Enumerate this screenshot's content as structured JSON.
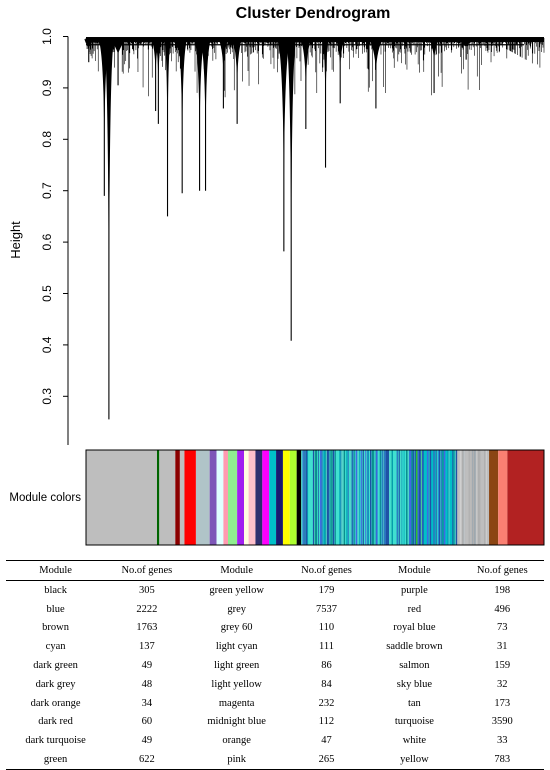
{
  "chart_data": {
    "type": "dendrogram",
    "title": "Cluster Dendrogram",
    "ylabel": "Height",
    "xlabel": "",
    "ylim": [
      0.22,
      1.0
    ],
    "yticks": [
      0.3,
      0.4,
      0.5,
      0.6,
      0.7,
      0.8,
      0.9,
      1.0
    ],
    "ytick_labels": [
      "0.3",
      "0.4",
      "0.5",
      "0.6",
      "0.7",
      "0.8",
      "0.9",
      "1.0"
    ],
    "color_bar_label": "Module colors",
    "deep_branches": [
      {
        "pos": 0.05,
        "height": 0.255
      },
      {
        "pos": 0.178,
        "height": 0.65
      },
      {
        "pos": 0.04,
        "height": 0.69
      },
      {
        "pos": 0.21,
        "height": 0.695
      },
      {
        "pos": 0.248,
        "height": 0.7
      },
      {
        "pos": 0.261,
        "height": 0.7
      },
      {
        "pos": 0.448,
        "height": 0.408
      },
      {
        "pos": 0.432,
        "height": 0.582
      },
      {
        "pos": 0.523,
        "height": 0.745
      },
      {
        "pos": 0.152,
        "height": 0.855
      },
      {
        "pos": 0.158,
        "height": 0.83
      },
      {
        "pos": 0.3,
        "height": 0.86
      },
      {
        "pos": 0.33,
        "height": 0.83
      },
      {
        "pos": 0.48,
        "height": 0.82
      },
      {
        "pos": 0.555,
        "height": 0.87
      },
      {
        "pos": 0.633,
        "height": 0.86
      },
      {
        "pos": 0.76,
        "height": 0.89
      },
      {
        "pos": 0.07,
        "height": 0.905
      },
      {
        "pos": 0.006,
        "height": 0.95
      },
      {
        "pos": 0.83,
        "height": 0.955
      }
    ],
    "module_color_bands": [
      {
        "from": 0.0,
        "to": 0.155,
        "color": "#bebebe"
      },
      {
        "from": 0.155,
        "to": 0.16,
        "color": "#006400"
      },
      {
        "from": 0.16,
        "to": 0.195,
        "color": "#bebebe"
      },
      {
        "from": 0.195,
        "to": 0.205,
        "color": "#8b0000"
      },
      {
        "from": 0.205,
        "to": 0.215,
        "color": "#bebebe"
      },
      {
        "from": 0.215,
        "to": 0.24,
        "color": "#ff0000"
      },
      {
        "from": 0.24,
        "to": 0.27,
        "color": "#b0c4c8"
      },
      {
        "from": 0.27,
        "to": 0.285,
        "color": "#7e57b8"
      },
      {
        "from": 0.285,
        "to": 0.3,
        "color": "#e0ffff"
      },
      {
        "from": 0.3,
        "to": 0.31,
        "color": "#ff9ab0"
      },
      {
        "from": 0.31,
        "to": 0.33,
        "color": "#90ee90"
      },
      {
        "from": 0.33,
        "to": 0.345,
        "color": "#a020f0"
      },
      {
        "from": 0.345,
        "to": 0.355,
        "color": "#ffffe0"
      },
      {
        "from": 0.355,
        "to": 0.37,
        "color": "#ffc0cb"
      },
      {
        "from": 0.37,
        "to": 0.385,
        "color": "#2f2f6f"
      },
      {
        "from": 0.385,
        "to": 0.4,
        "color": "#ff00ff"
      },
      {
        "from": 0.4,
        "to": 0.415,
        "color": "#00bfc8"
      },
      {
        "from": 0.415,
        "to": 0.43,
        "color": "#191970"
      },
      {
        "from": 0.43,
        "to": 0.445,
        "color": "#ffff00"
      },
      {
        "from": 0.445,
        "to": 0.46,
        "color": "#adff2f"
      },
      {
        "from": 0.46,
        "to": 0.47,
        "color": "#000000"
      },
      {
        "from": 0.47,
        "to": 0.65,
        "color": "#40e0d0"
      },
      {
        "from": 0.65,
        "to": 0.662,
        "color": "#1f52a5"
      },
      {
        "from": 0.662,
        "to": 0.705,
        "color": "#40e0d0"
      },
      {
        "from": 0.705,
        "to": 0.72,
        "color": "#4169e1"
      },
      {
        "from": 0.72,
        "to": 0.735,
        "color": "#2ec02e"
      },
      {
        "from": 0.735,
        "to": 0.81,
        "color": "#00c0c8"
      },
      {
        "from": 0.81,
        "to": 0.88,
        "color": "#bebebe"
      },
      {
        "from": 0.88,
        "to": 0.9,
        "color": "#8b4513"
      },
      {
        "from": 0.9,
        "to": 0.92,
        "color": "#fa8072"
      },
      {
        "from": 0.92,
        "to": 1.0,
        "color": "#b22222"
      }
    ],
    "module_table": {
      "headers": [
        "Module",
        "No.of genes",
        "Module",
        "No.of genes",
        "Module",
        "No.of genes"
      ],
      "rows": [
        [
          "black",
          "305",
          "green yellow",
          "179",
          "purple",
          "198"
        ],
        [
          "blue",
          "2222",
          "grey",
          "7537",
          "red",
          "496"
        ],
        [
          "brown",
          "1763",
          "grey 60",
          "110",
          "royal blue",
          "73"
        ],
        [
          "cyan",
          "137",
          "light cyan",
          "111",
          "saddle brown",
          "31"
        ],
        [
          "dark green",
          "49",
          "light green",
          "86",
          "salmon",
          "159"
        ],
        [
          "dark grey",
          "48",
          "light yellow",
          "84",
          "sky blue",
          "32"
        ],
        [
          "dark orange",
          "34",
          "magenta",
          "232",
          "tan",
          "173"
        ],
        [
          "dark red",
          "60",
          "midnight blue",
          "112",
          "turquoise",
          "3590"
        ],
        [
          "dark turquoise",
          "49",
          "orange",
          "47",
          "white",
          "33"
        ],
        [
          "green",
          "622",
          "pink",
          "265",
          "yellow",
          "783"
        ]
      ]
    }
  }
}
